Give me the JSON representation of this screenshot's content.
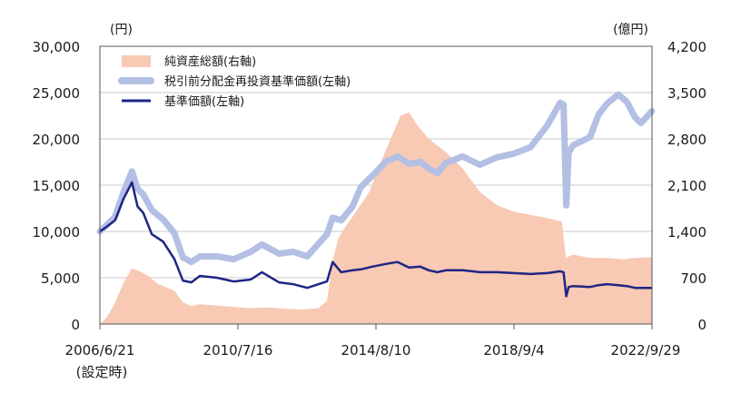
{
  "chart_data": {
    "type": "line",
    "left_unit": "(円)",
    "right_unit": "(億円)",
    "x_start": "2006-06-21",
    "x_end": "2022-09-29",
    "x_tick_labels": [
      "2006/6/21",
      "2010/7/16",
      "2014/8/10",
      "2018/9/4",
      "2022/9/29"
    ],
    "x_start_note": "(設定時)",
    "y_left_ticks": [
      "30,000",
      "25,000",
      "20,000",
      "15,000",
      "10,000",
      "5,000",
      "0"
    ],
    "y_right_ticks": [
      "4,200",
      "3,500",
      "2,800",
      "2,100",
      "1,400",
      "700",
      "0"
    ],
    "y_left_range": [
      0,
      30000
    ],
    "y_right_range": [
      0,
      4200
    ],
    "grid": "horizontal",
    "legend_position": "top-left",
    "series": [
      {
        "name": "純資産総額(右軸)",
        "type": "area",
        "axis": "right",
        "color": "#f8c9b3",
        "points": [
          [
            "2006-06-21",
            0
          ],
          [
            "2006-09-01",
            100
          ],
          [
            "2006-12-01",
            320
          ],
          [
            "2007-03-01",
            620
          ],
          [
            "2007-06-01",
            840
          ],
          [
            "2007-09-01",
            790
          ],
          [
            "2007-12-01",
            720
          ],
          [
            "2008-03-01",
            610
          ],
          [
            "2008-06-01",
            560
          ],
          [
            "2008-09-01",
            500
          ],
          [
            "2008-12-01",
            330
          ],
          [
            "2009-03-01",
            270
          ],
          [
            "2009-06-01",
            300
          ],
          [
            "2009-12-01",
            280
          ],
          [
            "2010-06-01",
            260
          ],
          [
            "2010-12-01",
            240
          ],
          [
            "2011-06-01",
            250
          ],
          [
            "2011-12-01",
            230
          ],
          [
            "2012-06-01",
            220
          ],
          [
            "2012-12-01",
            240
          ],
          [
            "2013-03-01",
            350
          ],
          [
            "2013-05-01",
            950
          ],
          [
            "2013-07-01",
            1300
          ],
          [
            "2013-10-01",
            1500
          ],
          [
            "2014-02-01",
            1750
          ],
          [
            "2014-06-01",
            2000
          ],
          [
            "2014-10-01",
            2450
          ],
          [
            "2015-02-01",
            2850
          ],
          [
            "2015-05-01",
            3150
          ],
          [
            "2015-08-01",
            3200
          ],
          [
            "2015-11-01",
            3000
          ],
          [
            "2016-03-01",
            2800
          ],
          [
            "2016-09-01",
            2600
          ],
          [
            "2017-03-01",
            2350
          ],
          [
            "2017-09-01",
            2000
          ],
          [
            "2018-03-01",
            1800
          ],
          [
            "2018-09-01",
            1700
          ],
          [
            "2019-03-01",
            1650
          ],
          [
            "2019-09-01",
            1600
          ],
          [
            "2020-02-01",
            1550
          ],
          [
            "2020-03-15",
            1000
          ],
          [
            "2020-06-01",
            1050
          ],
          [
            "2020-12-01",
            1000
          ],
          [
            "2021-06-01",
            1000
          ],
          [
            "2021-12-01",
            980
          ],
          [
            "2022-04-01",
            1000
          ],
          [
            "2022-09-29",
            1010
          ]
        ]
      },
      {
        "name": "税引前分配金再投資基準価額(左軸)",
        "type": "line",
        "axis": "left",
        "color": "#b3bfe3",
        "points": [
          [
            "2006-06-21",
            10000
          ],
          [
            "2006-09-01",
            10700
          ],
          [
            "2006-12-01",
            11600
          ],
          [
            "2007-03-01",
            14200
          ],
          [
            "2007-06-01",
            16500
          ],
          [
            "2007-08-01",
            14600
          ],
          [
            "2007-10-01",
            14000
          ],
          [
            "2008-01-01",
            12300
          ],
          [
            "2008-05-01",
            11300
          ],
          [
            "2008-09-01",
            9800
          ],
          [
            "2008-12-01",
            7200
          ],
          [
            "2009-03-01",
            6700
          ],
          [
            "2009-06-01",
            7300
          ],
          [
            "2009-12-01",
            7300
          ],
          [
            "2010-06-01",
            7000
          ],
          [
            "2010-12-01",
            7800
          ],
          [
            "2011-04-01",
            8600
          ],
          [
            "2011-10-01",
            7600
          ],
          [
            "2012-03-01",
            7800
          ],
          [
            "2012-08-01",
            7300
          ],
          [
            "2012-12-01",
            8700
          ],
          [
            "2013-03-01",
            9700
          ],
          [
            "2013-05-01",
            11500
          ],
          [
            "2013-08-01",
            11200
          ],
          [
            "2013-12-01",
            12700
          ],
          [
            "2014-03-01",
            14800
          ],
          [
            "2014-07-01",
            16000
          ],
          [
            "2014-12-01",
            17600
          ],
          [
            "2015-04-01",
            18100
          ],
          [
            "2015-08-01",
            17300
          ],
          [
            "2015-12-01",
            17500
          ],
          [
            "2016-03-01",
            16800
          ],
          [
            "2016-06-01",
            16300
          ],
          [
            "2016-09-01",
            17400
          ],
          [
            "2017-03-01",
            18100
          ],
          [
            "2017-09-01",
            17200
          ],
          [
            "2018-03-01",
            18000
          ],
          [
            "2018-09-01",
            18400
          ],
          [
            "2019-03-01",
            19100
          ],
          [
            "2019-09-01",
            21500
          ],
          [
            "2020-01-15",
            23900
          ],
          [
            "2020-02-20",
            23700
          ],
          [
            "2020-03-20",
            12800
          ],
          [
            "2020-04-15",
            18500
          ],
          [
            "2020-06-01",
            19300
          ],
          [
            "2020-12-01",
            20200
          ],
          [
            "2021-03-01",
            22600
          ],
          [
            "2021-06-01",
            23800
          ],
          [
            "2021-10-01",
            24800
          ],
          [
            "2022-01-01",
            24000
          ],
          [
            "2022-04-01",
            22300
          ],
          [
            "2022-06-01",
            21700
          ],
          [
            "2022-09-29",
            23000
          ]
        ]
      },
      {
        "name": "基準価額(左軸)",
        "type": "line",
        "axis": "left",
        "color": "#1e2585",
        "points": [
          [
            "2006-06-21",
            10000
          ],
          [
            "2006-09-01",
            10500
          ],
          [
            "2006-12-01",
            11200
          ],
          [
            "2007-03-01",
            13500
          ],
          [
            "2007-06-01",
            15300
          ],
          [
            "2007-08-01",
            12700
          ],
          [
            "2007-10-01",
            12000
          ],
          [
            "2008-01-01",
            9700
          ],
          [
            "2008-05-01",
            8900
          ],
          [
            "2008-09-01",
            7000
          ],
          [
            "2008-12-01",
            4700
          ],
          [
            "2009-03-01",
            4500
          ],
          [
            "2009-06-01",
            5200
          ],
          [
            "2009-12-01",
            5000
          ],
          [
            "2010-06-01",
            4600
          ],
          [
            "2010-12-01",
            4800
          ],
          [
            "2011-04-01",
            5600
          ],
          [
            "2011-10-01",
            4500
          ],
          [
            "2012-03-01",
            4300
          ],
          [
            "2012-08-01",
            3900
          ],
          [
            "2012-12-01",
            4300
          ],
          [
            "2013-03-01",
            4600
          ],
          [
            "2013-05-01",
            6700
          ],
          [
            "2013-08-01",
            5600
          ],
          [
            "2013-12-01",
            5800
          ],
          [
            "2014-03-01",
            5900
          ],
          [
            "2014-07-01",
            6200
          ],
          [
            "2014-12-01",
            6500
          ],
          [
            "2015-04-01",
            6700
          ],
          [
            "2015-08-01",
            6100
          ],
          [
            "2015-12-01",
            6200
          ],
          [
            "2016-03-01",
            5800
          ],
          [
            "2016-06-01",
            5600
          ],
          [
            "2016-09-01",
            5800
          ],
          [
            "2017-03-01",
            5800
          ],
          [
            "2017-09-01",
            5600
          ],
          [
            "2018-03-01",
            5600
          ],
          [
            "2018-09-01",
            5500
          ],
          [
            "2019-03-01",
            5400
          ],
          [
            "2019-09-01",
            5500
          ],
          [
            "2020-01-15",
            5700
          ],
          [
            "2020-02-20",
            5600
          ],
          [
            "2020-03-20",
            3000
          ],
          [
            "2020-04-15",
            4000
          ],
          [
            "2020-06-01",
            4100
          ],
          [
            "2020-12-01",
            4000
          ],
          [
            "2021-03-01",
            4200
          ],
          [
            "2021-06-01",
            4300
          ],
          [
            "2021-10-01",
            4200
          ],
          [
            "2022-01-01",
            4100
          ],
          [
            "2022-04-01",
            3900
          ],
          [
            "2022-06-01",
            3900
          ],
          [
            "2022-09-29",
            3900
          ]
        ]
      }
    ]
  }
}
